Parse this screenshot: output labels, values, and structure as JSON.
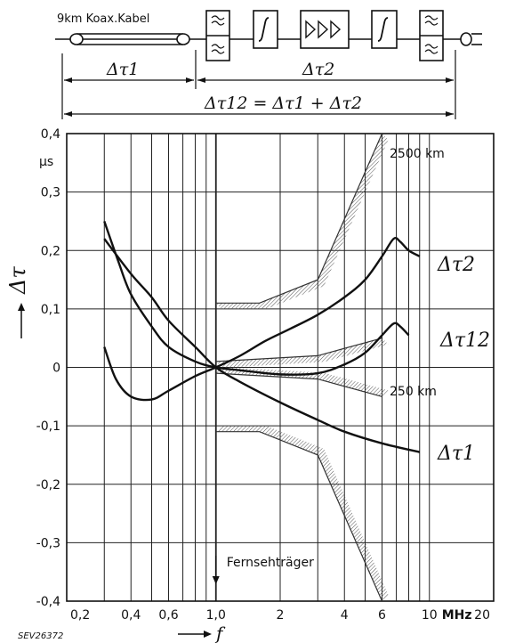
{
  "diagram": {
    "cable_label": "9km Koax.Kabel",
    "dt1_label": "Δτ1",
    "dt2_label": "Δτ2",
    "dt12_label": "Δτ12 = Δτ1 + Δτ2"
  },
  "chart_data": {
    "type": "line",
    "xscale": "log",
    "xlim": [
      0.2,
      20
    ],
    "ylim": [
      -0.4,
      0.4
    ],
    "x_ticks": [
      0.2,
      0.4,
      0.6,
      1.0,
      2,
      4,
      6,
      10,
      20
    ],
    "x_tick_labels": [
      "0,2",
      "0,4",
      "0,6",
      "1,0",
      "2",
      "4",
      "6",
      "10",
      "20"
    ],
    "x_unit": "MHz",
    "x_axis_label": "f",
    "y_ticks": [
      -0.4,
      -0.3,
      -0.2,
      -0.1,
      0,
      0.1,
      0.2,
      0.3,
      0.4
    ],
    "y_tick_labels": [
      "-0,4",
      "-0,3",
      "-0,2",
      "-0,1",
      "0",
      "0,1",
      "0,2",
      "0,3",
      "0,4"
    ],
    "y_unit": "μs",
    "y_axis_label": "Δτ",
    "grid": true,
    "series": [
      {
        "name": "Δτ2",
        "x": [
          0.3,
          0.34,
          0.4,
          0.5,
          0.6,
          0.8,
          1.0,
          1.3,
          1.7,
          2.2,
          3.0,
          4.0,
          5.0,
          6.0,
          6.8,
          7.3,
          8.0,
          9.0
        ],
        "y": [
          0.035,
          -0.02,
          -0.05,
          -0.055,
          -0.04,
          -0.015,
          0.0,
          0.02,
          0.045,
          0.065,
          0.09,
          0.12,
          0.15,
          0.19,
          0.22,
          0.215,
          0.2,
          0.19
        ]
      },
      {
        "name": "Δτ12",
        "x": [
          0.3,
          0.35,
          0.4,
          0.5,
          0.6,
          0.8,
          1.0,
          1.3,
          2.0,
          3.0,
          4.0,
          5.0,
          6.0,
          6.8,
          7.3,
          8.0
        ],
        "y": [
          0.25,
          0.18,
          0.125,
          0.07,
          0.035,
          0.01,
          0.0,
          -0.005,
          -0.012,
          -0.01,
          0.005,
          0.025,
          0.055,
          0.075,
          0.07,
          0.055
        ]
      },
      {
        "name": "Δτ1",
        "x": [
          0.3,
          0.4,
          0.5,
          0.6,
          0.8,
          1.0,
          1.3,
          2.0,
          3.0,
          4.0,
          6.0,
          9.0
        ],
        "y": [
          0.22,
          0.16,
          0.12,
          0.08,
          0.035,
          0.0,
          -0.025,
          -0.06,
          -0.09,
          -0.11,
          -0.13,
          -0.145
        ]
      }
    ],
    "limit_bands": [
      {
        "label": "2500 km",
        "x": [
          1.0,
          1.6,
          3.0,
          6.0
        ],
        "y": [
          0.11,
          0.11,
          0.15,
          0.4
        ]
      },
      {
        "label": "",
        "x": [
          1.0,
          1.6,
          3.0,
          6.0
        ],
        "y": [
          -0.11,
          -0.11,
          -0.15,
          -0.4
        ]
      },
      {
        "label": "",
        "x": [
          1.0,
          3.0,
          6.0
        ],
        "y": [
          0.01,
          0.02,
          0.05
        ]
      },
      {
        "label": "250 km",
        "x": [
          1.0,
          3.0,
          6.0
        ],
        "y": [
          -0.01,
          -0.02,
          -0.05
        ]
      }
    ],
    "annotations": [
      {
        "text": "Fernsehträger",
        "x": 1.0
      },
      {
        "text": "SEV26372"
      }
    ]
  }
}
